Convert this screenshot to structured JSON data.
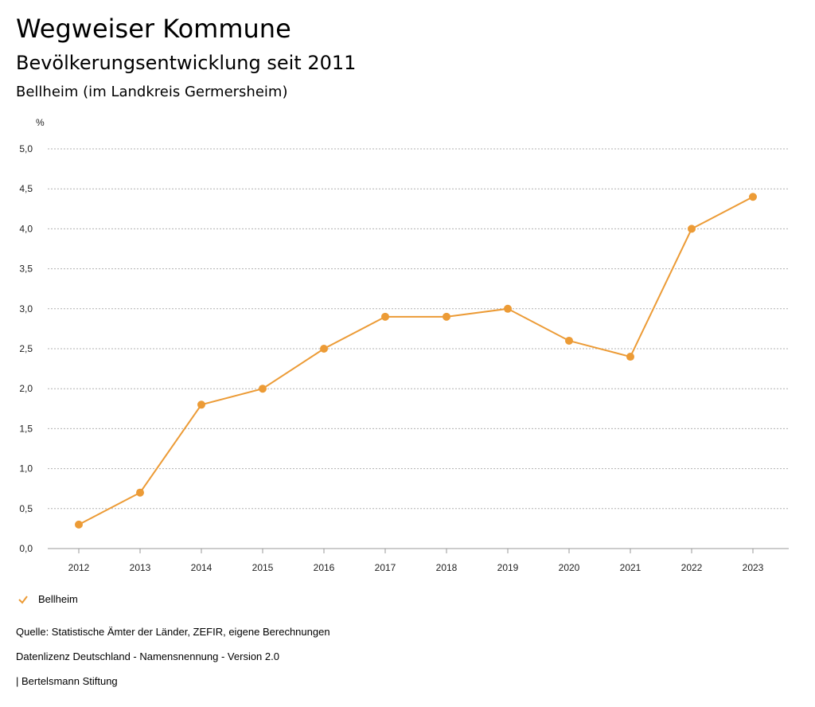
{
  "header": {
    "title": "Wegweiser Kommune",
    "subtitle": "Bevölkerungsentwicklung seit 2011",
    "region": "Bellheim (im Landkreis Germersheim)"
  },
  "legend": {
    "label": "Bellheim"
  },
  "footer": {
    "source": "Quelle: Statistische Ämter der Länder, ZEFIR, eigene Berechnungen",
    "license": "Datenlizenz Deutschland - Namensnennung - Version 2.0",
    "credit": "| Bertelsmann Stiftung"
  },
  "colors": {
    "series": "#ec9b36",
    "grid": "#b0b0b0"
  },
  "chart_data": {
    "type": "line",
    "unit_label": "%",
    "categories": [
      "2012",
      "2013",
      "2014",
      "2015",
      "2016",
      "2017",
      "2018",
      "2019",
      "2020",
      "2021",
      "2022",
      "2023"
    ],
    "series": [
      {
        "name": "Bellheim",
        "values": [
          0.3,
          0.7,
          1.8,
          2.0,
          2.5,
          2.9,
          2.9,
          3.0,
          2.6,
          2.4,
          4.0,
          4.4
        ]
      }
    ],
    "ylim": [
      0,
      5
    ],
    "yticks": [
      "0,0",
      "0,5",
      "1,0",
      "1,5",
      "2,0",
      "2,5",
      "3,0",
      "3,5",
      "4,0",
      "4,5",
      "5,0"
    ],
    "grid": true,
    "legend_position": "bottom-left"
  }
}
